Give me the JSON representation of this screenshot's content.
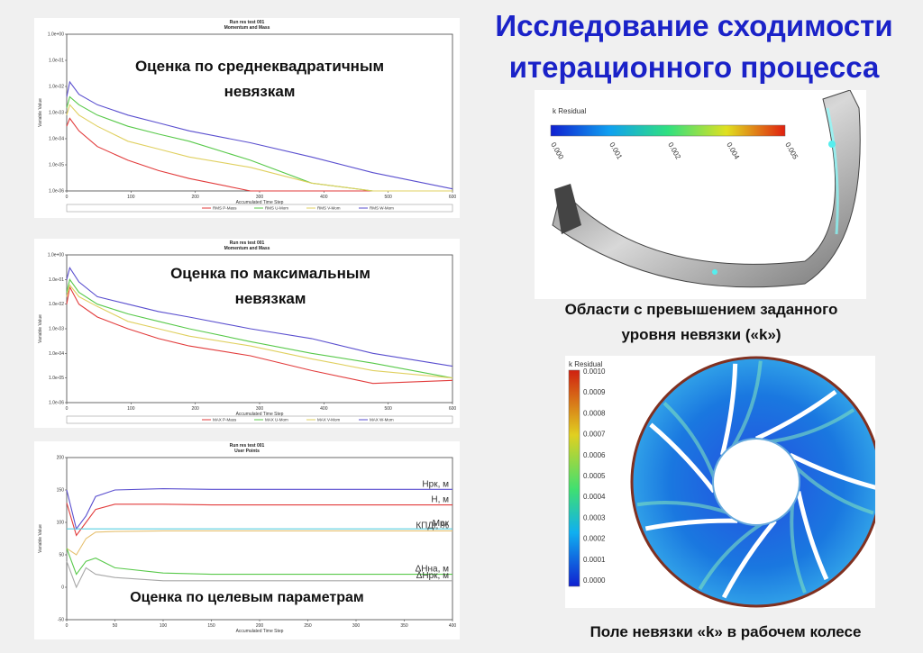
{
  "title_line1": "Исследование сходимости",
  "title_line2": "итерационного процесса",
  "captions": {
    "rms_line1": "Оценка по среднеквадратичным",
    "rms_line2": "невязкам",
    "max_line1": "Оценка по максимальным",
    "max_line2": "невязкам",
    "target": "Оценка по целевым параметрам",
    "regions_line1": "Области с превышением заданного",
    "regions_line2": "уровня невязки («k»)",
    "field": "Поле невязки «k» в рабочем колесе"
  },
  "colors": {
    "title": "#1a22c8",
    "p_mass": "#e23b3b",
    "u_mom": "#58c94a",
    "v_mom": "#e0d060",
    "w_mom": "#5a4fcf"
  },
  "chart_data": [
    {
      "type": "line",
      "title": "Run res test 001",
      "subtitle": "Momentum and Mass",
      "xlabel": "Accumulated Time Step",
      "ylabel": "Variable Value",
      "log_y": true,
      "ylim": [
        1e-06,
        1
      ],
      "xlim": [
        0,
        630
      ],
      "x_ticks": [
        "0",
        "100",
        "200",
        "300",
        "400",
        "500",
        "600"
      ],
      "y_ticks": [
        "1.0e-06",
        "1.0e-05",
        "1.0e-04",
        "1.0e-03",
        "1.0e-02",
        "1.0e-01",
        "1.0e+00"
      ],
      "legend": [
        "RMS P-Mass",
        "RMS U-Mom",
        "RMS V-Mom",
        "RMS W-Mom"
      ],
      "x": [
        0,
        5,
        20,
        50,
        100,
        150,
        200,
        300,
        400,
        500,
        630
      ],
      "series": [
        {
          "name": "RMS P-Mass",
          "values": [
            0.0003,
            0.0006,
            0.0002,
            5e-05,
            1.5e-05,
            6e-06,
            3e-06,
            1e-06,
            1e-06,
            1e-06,
            1e-06
          ]
        },
        {
          "name": "RMS U-Mom",
          "values": [
            0.0015,
            0.004,
            0.002,
            0.0008,
            0.0003,
            0.00015,
            8e-05,
            1.5e-05,
            2e-06,
            1e-06,
            1e-06
          ]
        },
        {
          "name": "RMS V-Mom",
          "values": [
            0.0008,
            0.002,
            0.0008,
            0.0003,
            8e-05,
            4e-05,
            2e-05,
            8e-06,
            2e-06,
            1e-06,
            1e-06
          ]
        },
        {
          "name": "RMS W-Mom",
          "values": [
            0.004,
            0.015,
            0.005,
            0.002,
            0.0008,
            0.0004,
            0.0002,
            7e-05,
            2e-05,
            5e-06,
            1.2e-06
          ]
        }
      ]
    },
    {
      "type": "line",
      "title": "Run res test 001",
      "subtitle": "Momentum and Mass",
      "xlabel": "Accumulated Time Step",
      "ylabel": "Variable Value",
      "log_y": true,
      "ylim": [
        1e-06,
        1
      ],
      "xlim": [
        0,
        630
      ],
      "x_ticks": [
        "0",
        "100",
        "200",
        "300",
        "400",
        "500",
        "600"
      ],
      "y_ticks": [
        "1.0e-06",
        "1.0e-05",
        "1.0e-04",
        "1.0e-03",
        "1.0e-02",
        "1.0e-01",
        "1.0e+00"
      ],
      "legend": [
        "MAX P-Mass",
        "MAX U-Mom",
        "MAX V-Mom",
        "MAX W-Mom"
      ],
      "x": [
        0,
        5,
        20,
        50,
        100,
        150,
        200,
        300,
        400,
        500,
        630
      ],
      "series": [
        {
          "name": "MAX P-Mass",
          "values": [
            0.01,
            0.05,
            0.01,
            0.003,
            0.001,
            0.0004,
            0.0002,
            8e-05,
            2e-05,
            6e-06,
            8e-06
          ]
        },
        {
          "name": "MAX U-Mom",
          "values": [
            0.03,
            0.1,
            0.03,
            0.01,
            0.004,
            0.002,
            0.001,
            0.0003,
            0.0001,
            4e-05,
            1e-05
          ]
        },
        {
          "name": "MAX V-Mom",
          "values": [
            0.02,
            0.06,
            0.02,
            0.008,
            0.002,
            0.001,
            0.0005,
            0.0002,
            6e-05,
            2e-05,
            1e-05
          ]
        },
        {
          "name": "MAX W-Mom",
          "values": [
            0.1,
            0.3,
            0.08,
            0.02,
            0.01,
            0.005,
            0.003,
            0.001,
            0.0004,
            0.0001,
            3e-05
          ]
        }
      ]
    },
    {
      "type": "line",
      "title": "Run res test 001",
      "subtitle": "User Points",
      "xlabel": "Accumulated Time Step",
      "ylabel": "Variable Value",
      "ylim": [
        -50,
        200
      ],
      "xlim": [
        0,
        400
      ],
      "x_ticks": [
        "0",
        "50",
        "100",
        "150",
        "200",
        "250",
        "300",
        "350",
        "400"
      ],
      "y_ticks": [
        "-50",
        "0",
        "50",
        "100",
        "150",
        "200"
      ],
      "x": [
        0,
        10,
        20,
        30,
        50,
        100,
        150,
        200,
        300,
        400
      ],
      "series": [
        {
          "name": "Нрк, м",
          "values": [
            150,
            90,
            110,
            140,
            150,
            152,
            151,
            151,
            151,
            151
          ]
        },
        {
          "name": "Н, м",
          "values": [
            130,
            80,
            100,
            120,
            128,
            128,
            127,
            127,
            127,
            127
          ]
        },
        {
          "name": "Мрк",
          "values": [
            90,
            90,
            90,
            90,
            90,
            90,
            90,
            90,
            90,
            90
          ]
        },
        {
          "name": "КПДг, %",
          "values": [
            60,
            50,
            75,
            85,
            86,
            87,
            87,
            87,
            87,
            87
          ]
        },
        {
          "name": "ΔНна, м",
          "values": [
            60,
            20,
            40,
            45,
            30,
            22,
            20,
            20,
            20,
            20
          ]
        },
        {
          "name": "ΔНрк, м",
          "values": [
            40,
            0,
            30,
            20,
            15,
            10,
            10,
            10,
            10,
            10
          ]
        }
      ],
      "series_colors": [
        "#5a4fcf",
        "#e23b3b",
        "#59cfe0",
        "#e6c070",
        "#58c94a",
        "#a8a8a8"
      ]
    }
  ],
  "contour_top": {
    "legend_title": "k Residual",
    "ticks": [
      "0.000",
      "0.001",
      "0.002",
      "0.004",
      "0.005"
    ]
  },
  "contour_bottom": {
    "legend_title": "k Residual",
    "ticks": [
      "0.0010",
      "0.0009",
      "0.0008",
      "0.0007",
      "0.0006",
      "0.0005",
      "0.0004",
      "0.0003",
      "0.0002",
      "0.0001",
      "0.0000"
    ]
  }
}
